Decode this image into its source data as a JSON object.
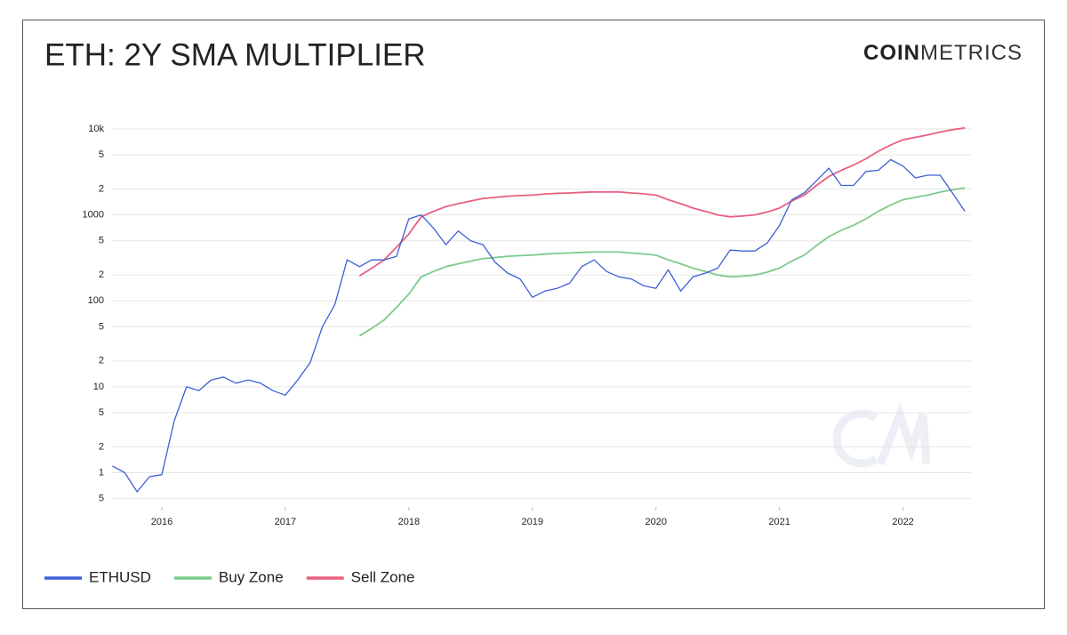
{
  "chart_data": {
    "type": "line",
    "title": "ETH: 2Y SMA MULTIPLIER",
    "logo_bold": "COIN",
    "logo_light": "METRICS",
    "log_scale": true,
    "grid": true,
    "legend": "bottom-left",
    "xlim": [
      2015.59,
      2022.55
    ],
    "xticks": [
      2016,
      2017,
      2018,
      2019,
      2020,
      2021,
      2022
    ],
    "ylim": [
      0.4,
      11000
    ],
    "yticks": [
      {
        "value": 0.5,
        "label": "5"
      },
      1,
      {
        "value": 2,
        "label": "2"
      },
      {
        "value": 5,
        "label": "5"
      },
      10,
      {
        "value": 20,
        "label": "2"
      },
      {
        "value": 50,
        "label": "5"
      },
      100,
      {
        "value": 200,
        "label": "2"
      },
      {
        "value": 500,
        "label": "5"
      },
      1000,
      {
        "value": 2000,
        "label": "2"
      },
      {
        "value": 5000,
        "label": "5"
      },
      {
        "value": 10000,
        "label": "10k"
      }
    ],
    "x": [
      2015.6,
      2015.7,
      2015.8,
      2015.9,
      2016.0,
      2016.1,
      2016.2,
      2016.3,
      2016.4,
      2016.5,
      2016.6,
      2016.7,
      2016.8,
      2016.9,
      2017.0,
      2017.1,
      2017.2,
      2017.3,
      2017.4,
      2017.5,
      2017.6,
      2017.7,
      2017.8,
      2017.9,
      2018.0,
      2018.1,
      2018.2,
      2018.3,
      2018.4,
      2018.5,
      2018.6,
      2018.7,
      2018.8,
      2018.9,
      2019.0,
      2019.1,
      2019.2,
      2019.3,
      2019.4,
      2019.5,
      2019.6,
      2019.7,
      2019.8,
      2019.9,
      2020.0,
      2020.1,
      2020.2,
      2020.3,
      2020.4,
      2020.5,
      2020.6,
      2020.7,
      2020.8,
      2020.9,
      2021.0,
      2021.1,
      2021.2,
      2021.3,
      2021.4,
      2021.5,
      2021.6,
      2021.7,
      2021.8,
      2021.9,
      2022.0,
      2022.1,
      2022.2,
      2022.3,
      2022.4,
      2022.5
    ],
    "series": [
      {
        "name": "ETHUSD",
        "color": "#3d5fd6",
        "values": [
          1.2,
          1.0,
          0.6,
          0.9,
          0.95,
          4,
          10,
          9,
          12,
          13,
          11,
          12,
          11,
          9,
          8,
          12,
          19,
          50,
          90,
          300,
          250,
          300,
          300,
          330,
          900,
          1000,
          700,
          450,
          650,
          500,
          450,
          280,
          210,
          180,
          110,
          130,
          140,
          160,
          250,
          300,
          220,
          190,
          180,
          150,
          140,
          230,
          130,
          190,
          210,
          240,
          390,
          380,
          380,
          470,
          750,
          1500,
          1800,
          2500,
          3500,
          2200,
          2200,
          3200,
          3300,
          4400,
          3700,
          2700,
          2900,
          2900,
          1800,
          1100
        ]
      },
      {
        "name": "Buy Zone",
        "color": "#7dcb8c",
        "values": [
          null,
          null,
          null,
          null,
          null,
          null,
          null,
          null,
          null,
          null,
          null,
          null,
          null,
          null,
          null,
          null,
          null,
          null,
          null,
          null,
          39,
          48,
          60,
          84,
          120,
          190,
          220,
          250,
          270,
          290,
          310,
          320,
          330,
          336,
          340,
          350,
          356,
          360,
          366,
          370,
          370,
          370,
          360,
          352,
          340,
          300,
          270,
          240,
          220,
          200,
          190,
          194,
          200,
          216,
          240,
          290,
          340,
          440,
          560,
          660,
          760,
          900,
          1100,
          1300,
          1500,
          1600,
          1700,
          1840,
          1960,
          2060
        ]
      },
      {
        "name": "Sell Zone",
        "color": "#e8607f",
        "values": [
          null,
          null,
          null,
          null,
          null,
          null,
          null,
          null,
          null,
          null,
          null,
          null,
          null,
          null,
          null,
          null,
          null,
          null,
          null,
          null,
          195,
          240,
          300,
          420,
          600,
          950,
          1100,
          1250,
          1350,
          1450,
          1550,
          1600,
          1650,
          1680,
          1700,
          1750,
          1780,
          1800,
          1830,
          1850,
          1850,
          1850,
          1800,
          1760,
          1700,
          1500,
          1350,
          1200,
          1100,
          1000,
          950,
          970,
          1000,
          1080,
          1200,
          1450,
          1700,
          2200,
          2800,
          3300,
          3800,
          4500,
          5500,
          6500,
          7500,
          8000,
          8500,
          9200,
          9800,
          10300
        ]
      }
    ]
  }
}
